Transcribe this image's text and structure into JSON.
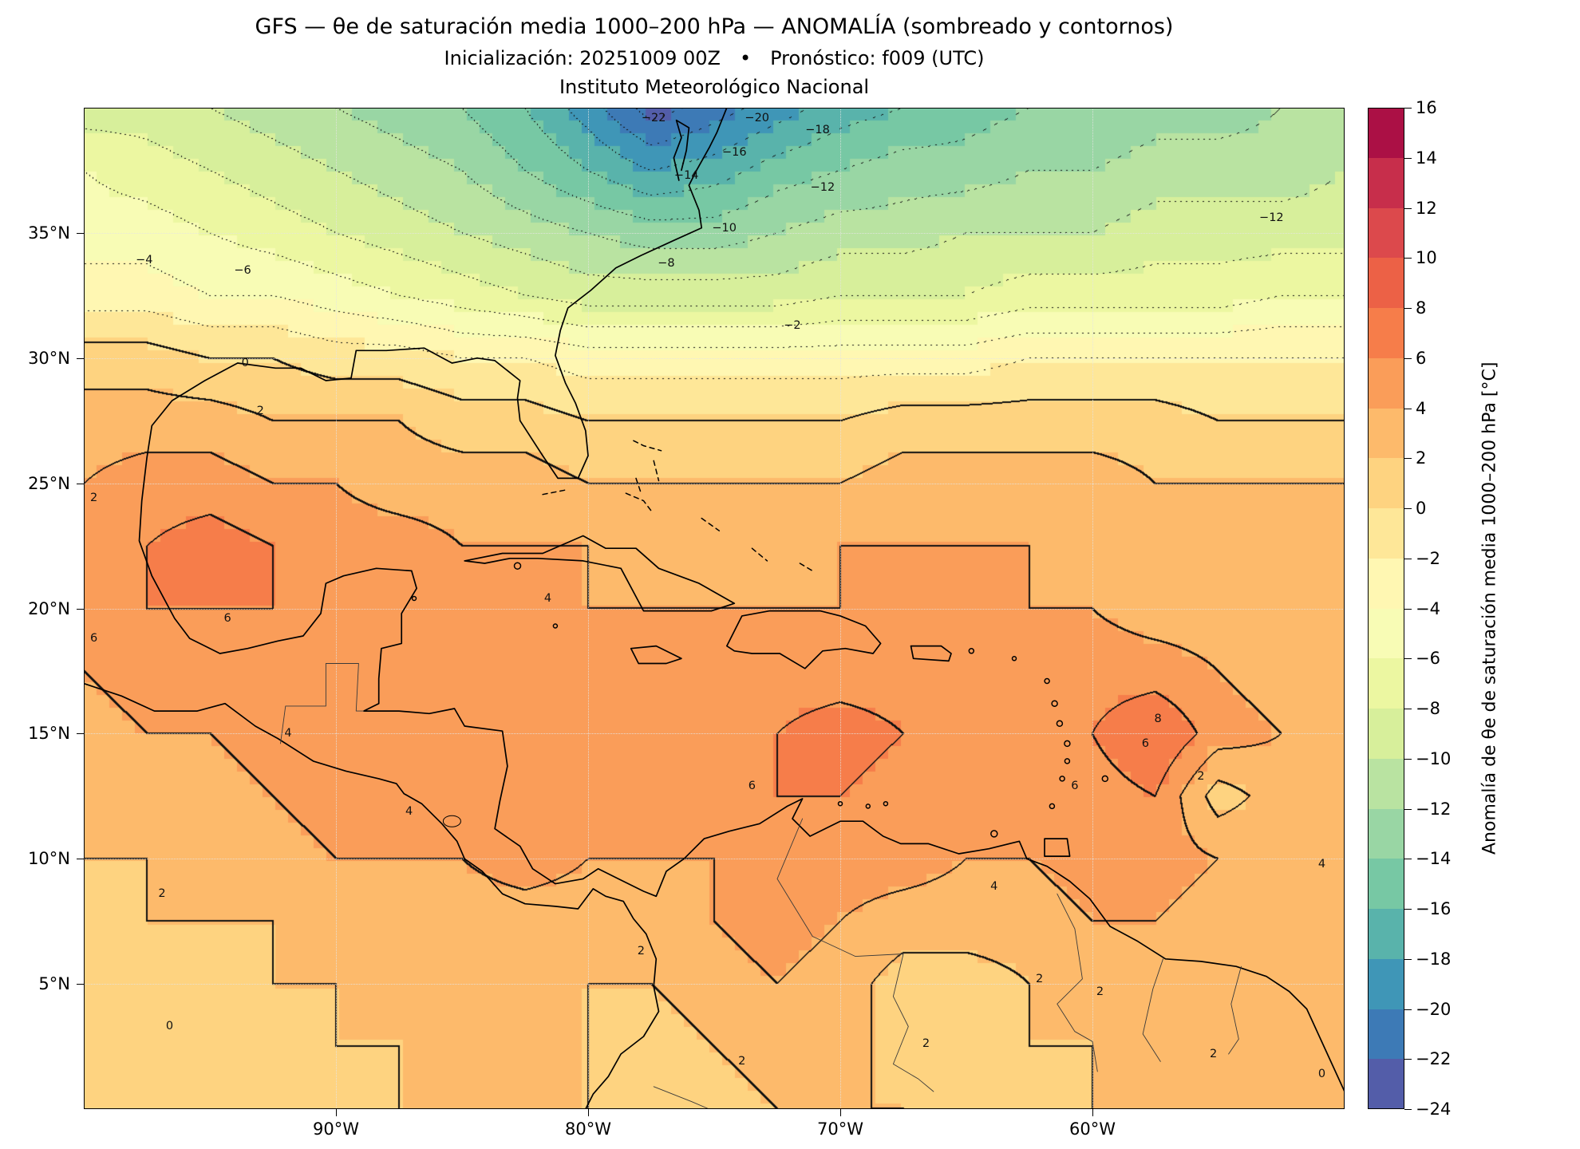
{
  "header": {
    "title": "GFS — θe de saturación media 1000–200 hPa — ANOMALÍA (sombreado y contornos)",
    "subtitle": "Inicialización: 20251009 00Z  •  Pronóstico: f009 (UTC)",
    "institution": "Instituto Meteorológico Nacional"
  },
  "chart_data": {
    "type": "heatmap",
    "title": "GFS — θe de saturación media 1000–200 hPa — ANOMALÍA (sombreado y contornos)",
    "subtitle": "Inicialización: 20251009 00Z  •  Pronóstico: f009 (UTC)",
    "institution": "Instituto Meteorológico Nacional",
    "extent": {
      "lon_min": -100,
      "lon_max": -50,
      "lat_min": 0,
      "lat_max": 40
    },
    "axes": {
      "x_ticks": [
        {
          "value": -90,
          "label": "90°W"
        },
        {
          "value": -80,
          "label": "80°W"
        },
        {
          "value": -70,
          "label": "70°W"
        },
        {
          "value": -60,
          "label": "60°W"
        }
      ],
      "y_ticks": [
        {
          "value": 35,
          "label": "35°N"
        },
        {
          "value": 30,
          "label": "30°N"
        },
        {
          "value": 25,
          "label": "25°N"
        },
        {
          "value": 20,
          "label": "20°N"
        },
        {
          "value": 15,
          "label": "15°N"
        },
        {
          "value": 10,
          "label": "10°N"
        },
        {
          "value": 5,
          "label": "5°N"
        }
      ]
    },
    "colorbar": {
      "label": "Anomalía de θe de saturación media 1000–200 hPa [°C]",
      "vmin": -24,
      "vmax": 16,
      "step": 2,
      "colors": [
        "#535da9",
        "#3d7ab6",
        "#3f96b7",
        "#59b3ab",
        "#77c8a4",
        "#99d6a4",
        "#b9e3a1",
        "#d7ef9b",
        "#ecf7a1",
        "#f8fcb5",
        "#fff7b2",
        "#fee798",
        "#fed380",
        "#fdba6b",
        "#fa9d59",
        "#f67d4a",
        "#ec6146",
        "#dc494c",
        "#c72e4b",
        "#ab1045"
      ]
    },
    "contour_interval": 2,
    "negative_contour_style": "dotted",
    "positive_contour_style": "solid",
    "grid": {
      "lons": [
        -100,
        -97.5,
        -95,
        -92.5,
        -90,
        -87.5,
        -85,
        -82.5,
        -80,
        -77.5,
        -75,
        -72.5,
        -70,
        -67.5,
        -65,
        -62.5,
        -60,
        -57.5,
        -55,
        -52.5,
        -50
      ],
      "lats_north_to_south": [
        40,
        37.5,
        35,
        32.5,
        30,
        27.5,
        25,
        22.5,
        20,
        17.5,
        15,
        12.5,
        10,
        7.5,
        5,
        2.5,
        0
      ],
      "values": [
        [
          -9,
          -9,
          -10,
          -11,
          -12,
          -13,
          -14,
          -16,
          -19,
          -23,
          -21,
          -19,
          -17,
          -16,
          -15,
          -14,
          -14,
          -13,
          -13,
          -12,
          -12
        ],
        [
          -6,
          -7,
          -8,
          -9,
          -10,
          -11,
          -12,
          -14,
          -16,
          -18,
          -17,
          -15,
          -14,
          -13,
          -13,
          -12,
          -12,
          -11,
          -11,
          -11,
          -10
        ],
        [
          -5,
          -5,
          -6,
          -7,
          -8,
          -9,
          -10,
          -11,
          -12,
          -13,
          -13,
          -12,
          -11,
          -11,
          -10,
          -10,
          -10,
          -9,
          -9,
          -9,
          -9
        ],
        [
          -3,
          -3,
          -4,
          -4,
          -5,
          -6,
          -7,
          -8,
          -9,
          -9,
          -9,
          -9,
          -8,
          -8,
          -8,
          -7,
          -7,
          -7,
          -7,
          -6,
          -6
        ],
        [
          1,
          1,
          0,
          0,
          -1,
          -1,
          -2,
          -2,
          -3,
          -3,
          -3,
          -3,
          -3,
          -3,
          -3,
          -2,
          -2,
          -2,
          -2,
          -2,
          -2
        ],
        [
          3,
          3,
          3,
          2,
          2,
          2,
          1,
          1,
          0,
          0,
          0,
          0,
          0,
          1,
          1,
          1,
          1,
          1,
          0,
          0,
          0
        ],
        [
          4,
          5,
          5,
          4,
          4,
          3,
          3,
          3,
          2,
          2,
          2,
          2,
          2,
          3,
          3,
          3,
          3,
          2,
          2,
          2,
          2
        ],
        [
          5,
          6,
          7,
          6,
          5,
          5,
          4,
          4,
          4,
          3,
          3,
          3,
          4,
          4,
          4,
          4,
          3,
          3,
          3,
          3,
          2
        ],
        [
          5,
          6,
          6,
          6,
          5,
          5,
          5,
          4,
          4,
          4,
          4,
          4,
          4,
          5,
          5,
          4,
          4,
          3,
          3,
          3,
          3
        ],
        [
          4,
          5,
          5,
          5,
          5,
          5,
          5,
          5,
          5,
          4,
          5,
          5,
          5,
          5,
          5,
          5,
          5,
          5,
          4,
          3,
          3
        ],
        [
          3,
          4,
          4,
          5,
          5,
          5,
          5,
          5,
          5,
          5,
          5,
          6,
          7,
          6,
          5,
          5,
          6,
          8,
          5,
          4,
          4
        ],
        [
          2,
          3,
          3,
          4,
          5,
          5,
          5,
          5,
          5,
          5,
          5,
          6,
          6,
          5,
          5,
          5,
          5,
          6,
          1,
          3,
          3
        ],
        [
          2,
          2,
          3,
          3,
          4,
          4,
          4,
          5,
          4,
          4,
          4,
          4,
          5,
          5,
          4,
          4,
          5,
          5,
          4,
          4,
          3
        ],
        [
          1,
          2,
          2,
          2,
          3,
          3,
          3,
          3,
          3,
          3,
          4,
          5,
          4,
          3,
          3,
          3,
          4,
          4,
          3,
          2,
          2
        ],
        [
          1,
          1,
          1,
          2,
          2,
          2,
          3,
          3,
          2,
          2,
          3,
          4,
          3,
          1,
          1,
          2,
          3,
          3,
          3,
          2,
          2
        ],
        [
          0,
          1,
          1,
          1,
          2,
          2,
          2,
          2,
          2,
          1,
          2,
          3,
          3,
          1,
          1,
          2,
          2,
          2,
          2,
          2,
          2
        ],
        [
          0,
          0,
          1,
          1,
          1,
          2,
          2,
          2,
          2,
          1,
          1,
          2,
          2,
          2,
          1,
          1,
          2,
          2,
          2,
          2,
          3
        ]
      ]
    },
    "contour_labels": [
      {
        "text": "−22",
        "lon": -77.4,
        "lat": 39.6
      },
      {
        "text": "−20",
        "lon": -73.3,
        "lat": 39.6
      },
      {
        "text": "−18",
        "lon": -70.9,
        "lat": 39.1
      },
      {
        "text": "−16",
        "lon": -74.2,
        "lat": 38.2
      },
      {
        "text": "−14",
        "lon": -76.1,
        "lat": 37.3
      },
      {
        "text": "−12",
        "lon": -70.7,
        "lat": 36.8
      },
      {
        "text": "−12",
        "lon": -52.9,
        "lat": 35.6
      },
      {
        "text": "−10",
        "lon": -74.6,
        "lat": 35.2
      },
      {
        "text": "−8",
        "lon": -76.9,
        "lat": 33.8
      },
      {
        "text": "−6",
        "lon": -93.7,
        "lat": 33.5
      },
      {
        "text": "−4",
        "lon": -97.6,
        "lat": 33.9
      },
      {
        "text": "−2",
        "lon": -71.9,
        "lat": 31.3
      },
      {
        "text": "0",
        "lon": -93.6,
        "lat": 29.8
      },
      {
        "text": "2",
        "lon": -93.0,
        "lat": 27.9
      },
      {
        "text": "2",
        "lon": -99.6,
        "lat": 24.4
      },
      {
        "text": "6",
        "lon": -94.3,
        "lat": 19.6
      },
      {
        "text": "6",
        "lon": -99.6,
        "lat": 18.8
      },
      {
        "text": "4",
        "lon": -81.6,
        "lat": 20.4
      },
      {
        "text": "4",
        "lon": -91.9,
        "lat": 15.0
      },
      {
        "text": "4",
        "lon": -87.1,
        "lat": 11.9
      },
      {
        "text": "6",
        "lon": -73.5,
        "lat": 12.9
      },
      {
        "text": "6",
        "lon": -60.7,
        "lat": 12.9
      },
      {
        "text": "8",
        "lon": -57.4,
        "lat": 15.6
      },
      {
        "text": "6",
        "lon": -57.9,
        "lat": 14.6
      },
      {
        "text": "2",
        "lon": -55.7,
        "lat": 13.3
      },
      {
        "text": "4",
        "lon": -50.9,
        "lat": 9.8
      },
      {
        "text": "4",
        "lon": -63.9,
        "lat": 8.9
      },
      {
        "text": "2",
        "lon": -96.9,
        "lat": 8.6
      },
      {
        "text": "2",
        "lon": -77.9,
        "lat": 6.3
      },
      {
        "text": "2",
        "lon": -62.1,
        "lat": 5.2
      },
      {
        "text": "2",
        "lon": -59.7,
        "lat": 4.7
      },
      {
        "text": "0",
        "lon": -96.6,
        "lat": 3.3
      },
      {
        "text": "2",
        "lon": -73.9,
        "lat": 1.9
      },
      {
        "text": "2",
        "lon": -66.6,
        "lat": 2.6
      },
      {
        "text": "2",
        "lon": -55.2,
        "lat": 2.2
      },
      {
        "text": "0",
        "lon": -50.9,
        "lat": 1.4
      }
    ]
  }
}
